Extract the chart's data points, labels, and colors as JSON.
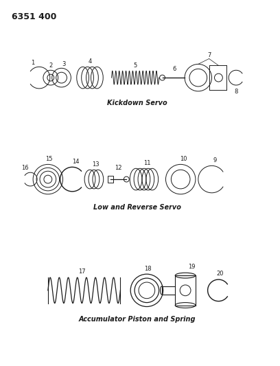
{
  "title": "6351 400",
  "bg_color": "#ffffff",
  "line_color": "#1a1a1a",
  "section1_label": "Kickdown Servo",
  "section2_label": "Low and Reverse Servo",
  "section3_label": "Accumulator Piston and Spring",
  "font_size_title": 9,
  "font_size_label": 7,
  "font_size_parts": 6,
  "figw": 4.08,
  "figh": 5.33,
  "dpi": 100
}
